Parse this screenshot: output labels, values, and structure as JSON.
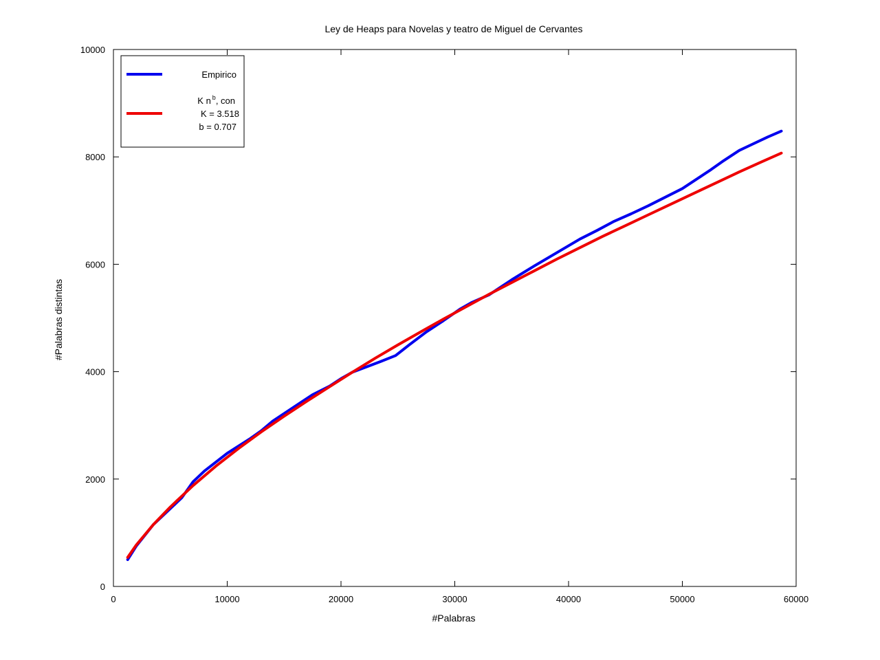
{
  "chart_data": {
    "type": "line",
    "title": "Ley de Heaps para Novelas y teatro de Miguel de Cervantes",
    "xlabel": "#Palabras",
    "ylabel": "#Palabras distintas",
    "xlim": [
      0,
      60000
    ],
    "ylim": [
      0,
      10000
    ],
    "xticks": [
      0,
      10000,
      20000,
      30000,
      40000,
      50000,
      60000
    ],
    "yticks": [
      0,
      2000,
      4000,
      6000,
      8000,
      10000
    ],
    "grid": false,
    "legend_position": "top-left",
    "series": [
      {
        "name": "Empirico",
        "color": "#0000ee",
        "x": [
          1250,
          2000,
          3500,
          4500,
          6000,
          7000,
          8000,
          10000,
          12000,
          13000,
          14000,
          16000,
          17500,
          19000,
          20000,
          21000,
          22500,
          23500,
          24800,
          26000,
          27500,
          29000,
          30500,
          31500,
          33000,
          35000,
          37000,
          39000,
          41000,
          42500,
          44000,
          45500,
          47000,
          48500,
          50000,
          51500,
          52500,
          53500,
          55000,
          56000,
          57500,
          58700
        ],
        "y": [
          500,
          750,
          1150,
          1350,
          1650,
          1950,
          2150,
          2480,
          2750,
          2900,
          3080,
          3360,
          3570,
          3730,
          3870,
          3990,
          4110,
          4190,
          4300,
          4500,
          4740,
          4950,
          5170,
          5290,
          5430,
          5710,
          5970,
          6220,
          6470,
          6630,
          6800,
          6940,
          7090,
          7250,
          7410,
          7620,
          7760,
          7910,
          8120,
          8220,
          8370,
          8480
        ]
      },
      {
        "name": "K n^b, con K = 3.518 b = 0.707",
        "color": "#ee0000",
        "x": [
          1250,
          2000,
          3500,
          5000,
          7000,
          9000,
          11000,
          13000,
          15000,
          17000,
          19000,
          21000,
          23000,
          25000,
          27000,
          29000,
          31000,
          33000,
          35000,
          37000,
          39000,
          41000,
          43000,
          45000,
          47000,
          49000,
          51000,
          53000,
          55000,
          57000,
          58700
        ],
        "y": [
          540,
          770,
          1150,
          1480,
          1880,
          2240,
          2570,
          2880,
          3170,
          3450,
          3720,
          3990,
          4250,
          4500,
          4740,
          4980,
          5210,
          5440,
          5660,
          5880,
          6100,
          6310,
          6520,
          6720,
          6920,
          7120,
          7320,
          7520,
          7720,
          7910,
          8070
        ]
      }
    ],
    "legend": {
      "entry1": "Empirico",
      "entry2_pre": "K n",
      "entry2_sup": "b",
      "entry2_post": ", con",
      "entry2_line2": "K = 3.518",
      "entry2_line3": "b = 0.707"
    }
  }
}
